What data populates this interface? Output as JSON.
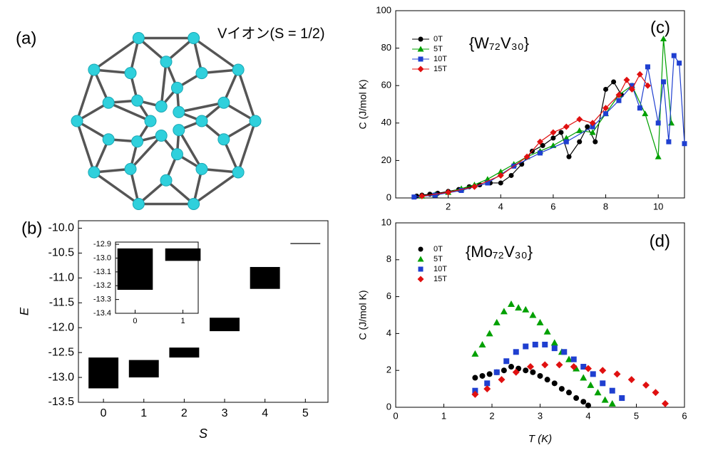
{
  "panel_a": {
    "label": "(a)",
    "caption": "Vイオン(S = 1/2)"
  },
  "chart_data": [
    {
      "type": "levels",
      "label": "(b)",
      "xlabel": "S",
      "ylabel": "E",
      "x": [
        0,
        1,
        2,
        3,
        4,
        5
      ],
      "low": [
        -13.22,
        -13.0,
        -12.6,
        -12.07,
        -11.22,
        -10.3
      ],
      "high": [
        -12.6,
        -12.65,
        -12.4,
        -11.8,
        -10.78,
        -10.3
      ],
      "color": "#000000",
      "xlim": [
        -0.62,
        5.56
      ],
      "xticks": [
        0,
        1,
        2,
        3,
        4,
        5
      ],
      "ylim": [
        -13.5,
        -9.85
      ],
      "yticks": [
        {
          "value": -10,
          "label": "-10.0"
        },
        -10.5,
        {
          "value": -11,
          "label": "-11.0"
        },
        -11.5,
        {
          "value": -12,
          "label": "-12.0"
        },
        -12.5,
        {
          "value": -13,
          "label": "-13.0"
        },
        -13.5
      ]
    },
    {
      "type": "levels",
      "x": [
        0,
        1
      ],
      "low": [
        -13.23,
        -13.02
      ],
      "high": [
        -12.93,
        -12.93
      ],
      "color": "#000000",
      "xlim": [
        -0.41,
        1.32
      ],
      "xticks": [
        0,
        1
      ],
      "ylim": [
        -13.4,
        -12.884
      ],
      "yticks": [
        -12.9,
        {
          "value": -13,
          "label": "-13.0"
        },
        -13.1,
        -13.2,
        -13.3,
        -13.4
      ]
    },
    {
      "type": "scatter",
      "label": "(c)",
      "title": "{W₇₂V₃₀}",
      "ylabel": "C (J/mol K)",
      "lines": true,
      "legend": "upper left",
      "xlim": [
        0,
        11
      ],
      "xticks": [
        2,
        4,
        6,
        8,
        10
      ],
      "ylim": [
        0,
        100
      ],
      "yticks": [
        0,
        20,
        40,
        60,
        80,
        100
      ],
      "series": [
        {
          "name": "0T",
          "color": "#000000",
          "marker": "circle",
          "x": [
            0.8,
            1,
            1.3,
            1.6,
            2,
            2.4,
            2.8,
            3.2,
            3.6,
            4,
            4.4,
            4.8,
            5.2,
            5.6,
            6,
            6.3,
            6.6,
            7,
            7.3,
            7.6,
            8,
            8.3,
            8.6
          ],
          "values": [
            1,
            1.5,
            2,
            2.5,
            3.5,
            4.5,
            6,
            7,
            8,
            8,
            12,
            18,
            25,
            28,
            32,
            35,
            22,
            30,
            38,
            30,
            58,
            62,
            55
          ]
        },
        {
          "name": "5T",
          "color": "#00a000",
          "marker": "triangle",
          "x": [
            1,
            1.5,
            2,
            2.5,
            3,
            3.5,
            4,
            4.5,
            5,
            5.5,
            6,
            6.5,
            7,
            7.5,
            8,
            8.5,
            9,
            9.5,
            10,
            10.2,
            10.5
          ],
          "values": [
            1,
            1.8,
            3,
            5,
            7,
            10,
            14,
            18,
            22,
            25,
            28,
            32,
            36,
            35,
            45,
            55,
            60,
            45,
            22,
            85,
            40
          ]
        },
        {
          "name": "10T",
          "color": "#1f3fd0",
          "marker": "square",
          "x": [
            0.7,
            1.5,
            2.5,
            3.5,
            4.5,
            5.5,
            6.5,
            7.5,
            8,
            8.5,
            9,
            9.3,
            9.6,
            10,
            10.2,
            10.4,
            10.6,
            10.8,
            11
          ],
          "values": [
            0.5,
            1.5,
            4,
            8,
            17,
            24,
            30,
            38,
            45,
            52,
            60,
            48,
            70,
            40,
            62,
            30,
            76,
            72,
            29
          ]
        },
        {
          "name": "15T",
          "color": "#e01010",
          "marker": "diamond",
          "x": [
            1,
            2,
            3,
            4,
            5,
            5.5,
            6,
            6.5,
            7,
            7.5,
            8,
            8.5,
            8.8,
            9,
            9.3,
            9.6
          ],
          "values": [
            1,
            3,
            6,
            12,
            22,
            30,
            35,
            38,
            42,
            40,
            48,
            55,
            63,
            58,
            66,
            60
          ]
        }
      ]
    },
    {
      "type": "scatter",
      "label": "(d)",
      "title": "{Mo₇₂V₃₀}",
      "ylabel": "C (J/mol K)",
      "xlabel": "T (K)",
      "lines": false,
      "legend": "upper left",
      "xlim": [
        0,
        6
      ],
      "xticks": [
        0,
        1,
        2,
        3,
        4,
        5,
        6
      ],
      "ylim": [
        0,
        10
      ],
      "yticks": [
        0,
        2,
        4,
        6,
        8,
        10
      ],
      "series": [
        {
          "name": "0T",
          "color": "#000000",
          "marker": "circle",
          "x": [
            1.65,
            1.8,
            1.95,
            2.1,
            2.25,
            2.4,
            2.55,
            2.7,
            2.85,
            3.0,
            3.15,
            3.3,
            3.45,
            3.6,
            3.75,
            3.9,
            4.0
          ],
          "values": [
            1.6,
            1.7,
            1.8,
            1.9,
            2.0,
            2.2,
            2.1,
            2.0,
            1.9,
            1.7,
            1.5,
            1.3,
            1.0,
            0.8,
            0.5,
            0.3,
            0.1
          ]
        },
        {
          "name": "5T",
          "color": "#00a000",
          "marker": "triangle",
          "x": [
            1.65,
            1.8,
            1.95,
            2.1,
            2.25,
            2.4,
            2.55,
            2.7,
            2.85,
            3.0,
            3.15,
            3.3,
            3.45,
            3.6,
            3.75,
            3.9,
            4.05,
            4.2,
            4.35,
            4.5
          ],
          "values": [
            2.9,
            3.4,
            4.0,
            4.6,
            5.2,
            5.6,
            5.4,
            5.3,
            5.0,
            4.6,
            4.1,
            3.5,
            3.0,
            2.6,
            2.1,
            1.6,
            1.2,
            0.8,
            0.4,
            0.2
          ]
        },
        {
          "name": "10T",
          "color": "#1f3fd0",
          "marker": "square",
          "x": [
            1.65,
            1.9,
            2.1,
            2.3,
            2.5,
            2.7,
            2.9,
            3.1,
            3.3,
            3.5,
            3.7,
            3.9,
            4.1,
            4.3,
            4.5,
            4.7
          ],
          "values": [
            0.9,
            1.3,
            1.9,
            2.5,
            3.0,
            3.3,
            3.4,
            3.4,
            3.2,
            3.0,
            2.6,
            2.2,
            1.8,
            1.3,
            0.9,
            0.5
          ]
        },
        {
          "name": "15T",
          "color": "#e01010",
          "marker": "diamond",
          "x": [
            1.65,
            1.9,
            2.2,
            2.5,
            2.8,
            3.1,
            3.4,
            3.7,
            4.0,
            4.3,
            4.6,
            4.9,
            5.2,
            5.4,
            5.6
          ],
          "values": [
            0.7,
            1.0,
            1.5,
            1.9,
            2.2,
            2.3,
            2.3,
            2.2,
            2.1,
            2.0,
            1.8,
            1.5,
            1.2,
            0.8,
            0.2
          ]
        }
      ]
    }
  ]
}
